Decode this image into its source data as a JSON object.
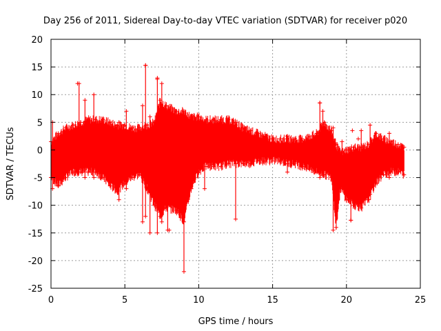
{
  "chart_data": {
    "type": "scatter",
    "title": "Day 256 of 2011, Sidereal Day-to-day VTEC variation (SDTVAR) for receiver p020",
    "xlabel": "GPS time / hours",
    "ylabel": "SDTVAR / TECUs",
    "xlim": [
      0,
      25
    ],
    "ylim": [
      -25,
      20
    ],
    "xticks": [
      0,
      5,
      10,
      15,
      20,
      25
    ],
    "yticks": [
      -25,
      -20,
      -15,
      -10,
      -5,
      0,
      5,
      10,
      15,
      20
    ],
    "grid": true,
    "marker": "+",
    "color": "#ff0000",
    "series": [
      {
        "name": "SDTVAR",
        "envelope_time_hours": [
          0.0,
          0.5,
          1.0,
          1.5,
          2.0,
          2.5,
          3.0,
          3.5,
          4.0,
          4.5,
          5.0,
          5.5,
          6.0,
          6.5,
          7.0,
          7.4,
          7.8,
          8.5,
          9.0,
          9.5,
          10.0,
          10.5,
          11.0,
          11.5,
          12.0,
          12.5,
          13.0,
          13.5,
          14.0,
          14.5,
          15.0,
          15.5,
          16.0,
          16.5,
          17.0,
          17.5,
          18.0,
          18.5,
          19.0,
          19.3,
          19.6,
          20.0,
          20.5,
          21.0,
          21.5,
          22.0,
          22.5,
          23.0,
          23.5,
          23.9
        ],
        "envelope_upper_tecu": [
          1.5,
          3.0,
          4.0,
          4.5,
          5.0,
          5.5,
          5.5,
          5.5,
          5.0,
          4.5,
          4.5,
          4.0,
          4.0,
          4.5,
          5.0,
          9.0,
          8.0,
          7.0,
          7.0,
          6.0,
          6.0,
          5.5,
          5.5,
          5.5,
          5.5,
          5.0,
          4.0,
          3.5,
          3.0,
          2.5,
          2.0,
          2.0,
          2.0,
          2.0,
          2.0,
          2.5,
          3.0,
          5.0,
          3.5,
          1.0,
          -0.5,
          0.0,
          0.5,
          0.5,
          1.0,
          3.0,
          2.0,
          1.5,
          1.0,
          0.5
        ],
        "envelope_lower_tecu": [
          -5.0,
          -6.5,
          -5.0,
          -4.0,
          -4.0,
          -4.0,
          -4.0,
          -5.0,
          -6.5,
          -7.5,
          -6.0,
          -5.0,
          -4.5,
          -7.0,
          -10.0,
          -12.0,
          -10.5,
          -11.0,
          -13.0,
          -7.0,
          -4.0,
          -3.0,
          -3.0,
          -3.0,
          -2.5,
          -2.5,
          -2.5,
          -2.5,
          -2.0,
          -2.0,
          -2.0,
          -2.0,
          -2.5,
          -2.5,
          -3.0,
          -3.5,
          -4.0,
          -4.5,
          -5.0,
          -14.0,
          -7.0,
          -9.0,
          -10.0,
          -10.5,
          -9.0,
          -6.0,
          -4.5,
          -4.0,
          -4.0,
          -4.5
        ],
        "spikes": [
          {
            "x": 0.1,
            "y_top": 5.0,
            "y_bottom": -7.0
          },
          {
            "x": 1.9,
            "y_top": 12.0,
            "y_bottom": -4.0
          },
          {
            "x": 2.3,
            "y_top": 9.0,
            "y_bottom": -5.0
          },
          {
            "x": 2.9,
            "y_top": 10.0,
            "y_bottom": -5.0
          },
          {
            "x": 4.6,
            "y_top": 5.0,
            "y_bottom": -9.0
          },
          {
            "x": 5.1,
            "y_top": 7.0,
            "y_bottom": -7.0
          },
          {
            "x": 6.2,
            "y_top": 8.0,
            "y_bottom": -13.0
          },
          {
            "x": 6.4,
            "y_top": 15.3,
            "y_bottom": -12.0
          },
          {
            "x": 6.7,
            "y_top": 6.0,
            "y_bottom": -15.0
          },
          {
            "x": 7.2,
            "y_top": 13.0,
            "y_bottom": -15.0
          },
          {
            "x": 7.5,
            "y_top": 12.0,
            "y_bottom": -13.0
          },
          {
            "x": 7.9,
            "y_top": 7.0,
            "y_bottom": -14.5
          },
          {
            "x": 9.0,
            "y_top": 4.0,
            "y_bottom": -22.0
          },
          {
            "x": 10.4,
            "y_top": 5.0,
            "y_bottom": -7.0
          },
          {
            "x": 12.5,
            "y_top": 4.5,
            "y_bottom": -12.5
          },
          {
            "x": 16.0,
            "y_top": 2.5,
            "y_bottom": -4.0
          },
          {
            "x": 18.2,
            "y_top": 8.5,
            "y_bottom": -5.0
          },
          {
            "x": 18.4,
            "y_top": 7.0,
            "y_bottom": -4.0
          },
          {
            "x": 19.1,
            "y_top": 4.0,
            "y_bottom": -14.5
          },
          {
            "x": 19.7,
            "y_top": 1.5,
            "y_bottom": -7.0
          },
          {
            "x": 20.3,
            "y_top": 0.0,
            "y_bottom": -12.7
          },
          {
            "x": 21.0,
            "y_top": 3.5,
            "y_bottom": -9.0
          },
          {
            "x": 21.6,
            "y_top": 4.5,
            "y_bottom": -8.0
          },
          {
            "x": 22.9,
            "y_top": 3.0,
            "y_bottom": -5.0
          }
        ],
        "isolated_points": [
          {
            "x": 1.8,
            "y": 12.0
          },
          {
            "x": 6.4,
            "y": 15.3
          },
          {
            "x": 7.2,
            "y": 12.8
          },
          {
            "x": 8.0,
            "y": -14.5
          },
          {
            "x": 18.2,
            "y": 8.5
          },
          {
            "x": 20.4,
            "y": 3.5
          },
          {
            "x": 20.8,
            "y": 2.0
          },
          {
            "x": 20.3,
            "y": -12.7
          }
        ]
      }
    ]
  }
}
